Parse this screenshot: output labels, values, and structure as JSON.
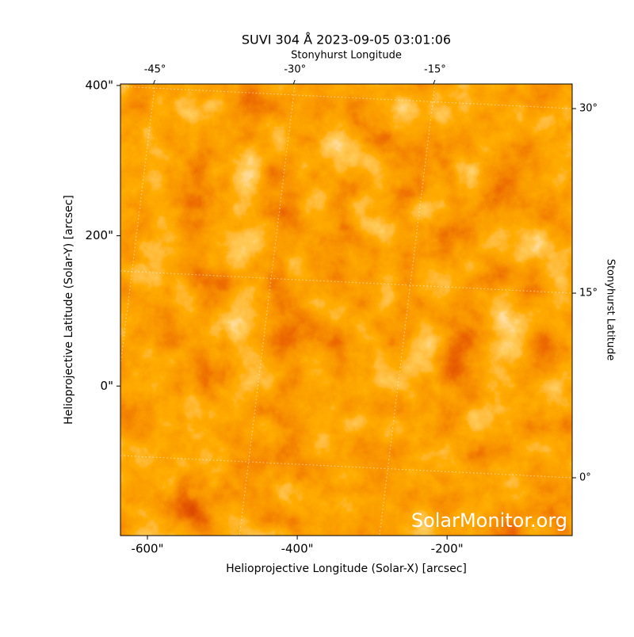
{
  "chart_data": {
    "type": "image",
    "title": "SUVI 304 Å 2023-09-05 03:01:06",
    "xlabel": "Helioprojective Longitude (Solar-X) [arcsec]",
    "ylabel": "Helioprojective Latitude (Solar-Y) [arcsec]",
    "x2label": "Stonyhurst Longitude",
    "y2label": "Stonyhurst Latitude",
    "watermark": "SolarMonitor.org",
    "xlim": [
      -636,
      -33
    ],
    "ylim": [
      -199,
      402
    ],
    "xticks": [
      {
        "value": -600,
        "label": "-600\""
      },
      {
        "value": -400,
        "label": "-400\""
      },
      {
        "value": -200,
        "label": "-200\""
      }
    ],
    "yticks": [
      {
        "value": 0,
        "label": "0\""
      },
      {
        "value": 200,
        "label": "200\""
      },
      {
        "value": 400,
        "label": "400\""
      }
    ],
    "x2lim": [
      -48.7,
      -0.3
    ],
    "x2ticks": [
      {
        "value": -45,
        "label": "-45°"
      },
      {
        "value": -30,
        "label": "-30°"
      },
      {
        "value": -15,
        "label": "-15°"
      }
    ],
    "y2lim": [
      -4.7,
      32
    ],
    "y2ticks": [
      {
        "value": 0,
        "label": "0°"
      },
      {
        "value": 15,
        "label": "15°"
      },
      {
        "value": 30,
        "label": "30°"
      }
    ],
    "grid": true
  }
}
